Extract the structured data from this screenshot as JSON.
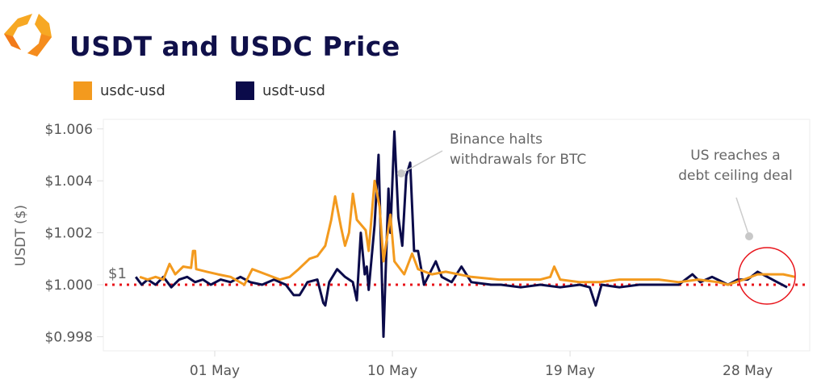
{
  "title": "USDT and USDC Price",
  "colors": {
    "usdc": "#f39a1e",
    "usdt": "#0b0b4a",
    "reference": "#e8141b",
    "annotation": "#c8c8c8"
  },
  "chart_data": {
    "type": "line",
    "title": "USDT and USDC Price",
    "xlabel": "",
    "ylabel": "USDT ($)",
    "x_unit": "days since 01 May",
    "xlim": [
      -5.6,
      30.2
    ],
    "ylim": [
      0.9976,
      1.0063
    ],
    "x_ticks": [
      {
        "value": 0,
        "label": "01 May"
      },
      {
        "value": 9,
        "label": "10 May"
      },
      {
        "value": 18,
        "label": "19 May"
      },
      {
        "value": 27,
        "label": "28 May"
      }
    ],
    "y_ticks": [
      {
        "value": 0.998,
        "label": "$0.998"
      },
      {
        "value": 1.0,
        "label": "$1.000"
      },
      {
        "value": 1.002,
        "label": "$1.002"
      },
      {
        "value": 1.004,
        "label": "$1.004"
      },
      {
        "value": 1.006,
        "label": "$1.006"
      }
    ],
    "legend": {
      "placement": "top-left",
      "entries": [
        "usdc-usd",
        "usdt-usd"
      ]
    },
    "reference_line": {
      "value": 1.0,
      "label": "$1"
    },
    "series": [
      {
        "name": "usdt-usd",
        "x": [
          -3.8,
          -3.4,
          -3.0,
          -2.6,
          -2.29,
          -2.0,
          -1.6,
          -1.2,
          -1.1,
          -1.0,
          -0.94,
          -0.4,
          0.16,
          0.8,
          1.5,
          1.9,
          2.6,
          3.3,
          3.8,
          4.25,
          4.8,
          5.2,
          5.6,
          5.9,
          6.1,
          6.4,
          6.6,
          6.8,
          7.0,
          7.2,
          7.65,
          7.8,
          8.1,
          8.35,
          8.55,
          8.9,
          9.1,
          9.6,
          10.0,
          10.3,
          11.0,
          11.7,
          13.0,
          14.4,
          15.5,
          16.5,
          17.0,
          17.2,
          17.5,
          18.5,
          19.5,
          20.5,
          21.5,
          22.5,
          23.5,
          24.5,
          25.5,
          26.0,
          26.8,
          27.5,
          28.2,
          28.8,
          29.4
        ],
        "y": [
          1.0003,
          1.0002,
          1.0003,
          1.0002,
          1.0008,
          1.0004,
          1.0007,
          1.00065,
          1.0013,
          1.0013,
          1.0006,
          1.0005,
          1.0004,
          1.0003,
          1.0,
          1.0006,
          1.0004,
          1.0002,
          1.0003,
          1.0006,
          1.001,
          1.0011,
          1.0015,
          1.0025,
          1.0034,
          1.0022,
          1.0015,
          1.002,
          1.0035,
          1.0025,
          1.0021,
          1.0013,
          1.004,
          1.003,
          1.0009,
          1.0027,
          1.0009,
          1.0004,
          1.0012,
          1.0006,
          1.0004,
          1.0005,
          1.0003,
          1.0002,
          1.0002,
          1.0002,
          1.0003,
          1.0007,
          1.0002,
          1.0001,
          1.0001,
          1.0002,
          1.0002,
          1.0002,
          1.0001,
          1.0002,
          1.0001,
          1.0,
          1.0002,
          1.0004,
          1.0004,
          1.0004,
          1.0003
        ]
      },
      {
        "name": "usdc-usd",
        "x": [
          -4.0,
          -3.7,
          -3.4,
          -3.0,
          -2.6,
          -2.2,
          -1.8,
          -1.4,
          -1.0,
          -0.6,
          -0.2,
          0.3,
          0.8,
          1.3,
          1.8,
          2.4,
          3.0,
          3.6,
          4.0,
          4.3,
          4.7,
          5.2,
          5.5,
          5.6,
          5.8,
          6.2,
          6.6,
          7.0,
          7.2,
          7.4,
          7.6,
          7.7,
          7.8,
          8.1,
          8.3,
          8.55,
          8.8,
          8.9,
          9.1,
          9.3,
          9.5,
          9.7,
          9.9,
          10.1,
          10.3,
          10.6,
          11.2,
          11.5,
          12.0,
          12.5,
          13.0,
          14.0,
          14.5,
          15.5,
          16.5,
          17.5,
          18.5,
          19.0,
          19.3,
          19.6,
          20.5,
          21.5,
          22.5,
          23.5,
          24.2,
          24.6,
          25.2,
          26.0,
          26.5,
          27.0,
          27.5,
          28.0,
          28.5,
          29.0
        ],
        "y": [
          1.0003,
          1.0,
          1.0002,
          1.0,
          1.0003,
          0.9999,
          1.0002,
          1.0003,
          1.0001,
          1.0002,
          1.0,
          1.0002,
          1.0001,
          1.0003,
          1.0001,
          1.0,
          1.0002,
          1.0,
          0.9996,
          0.9996,
          1.0001,
          1.0002,
          0.9993,
          0.9992,
          1.0001,
          1.0006,
          1.0003,
          1.0001,
          0.9994,
          1.002,
          1.0004,
          1.0007,
          0.9998,
          1.0023,
          1.005,
          0.998,
          1.0037,
          1.002,
          1.0059,
          1.0026,
          1.0015,
          1.0042,
          1.0047,
          1.0013,
          1.0013,
          1.0,
          1.0009,
          1.0003,
          1.0001,
          1.0007,
          1.0001,
          1.0,
          1.0,
          0.9999,
          1.0,
          0.9999,
          1.0,
          0.9999,
          0.9992,
          1.0,
          0.9999,
          1.0,
          1.0,
          1.0,
          1.0004,
          1.0001,
          1.0003,
          1.0,
          1.0002,
          1.0002,
          1.0005,
          1.0003,
          1.0001,
          0.9999
        ]
      }
    ],
    "annotations": [
      {
        "text_lines": [
          "Binance halts",
          "withdrawals for BTC"
        ],
        "x": 10.3,
        "y": 1.0043
      },
      {
        "text_lines": [
          "US reaches a",
          "debt ceiling deal"
        ],
        "x": 27.0,
        "y": 1.0018
      }
    ]
  }
}
